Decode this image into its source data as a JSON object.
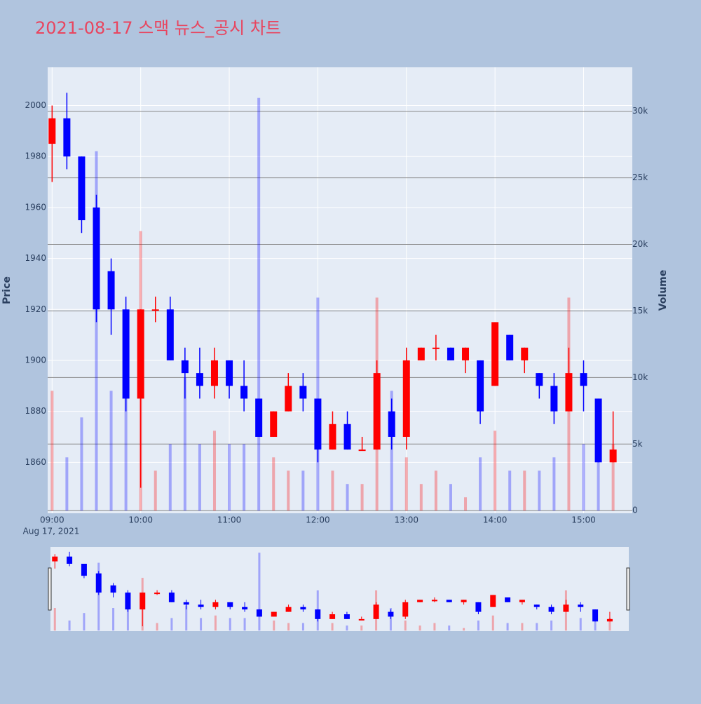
{
  "chart_data": {
    "type": "candlestick",
    "title": "2021-08-17 스맥 뉴스_공시 차트",
    "y_label": "Price",
    "y2_label": "Volume",
    "x_date_label": "Aug 17, 2021",
    "up_color": "#ff0000",
    "down_color": "#0000ff",
    "x": [
      "09:00",
      "09:10",
      "09:20",
      "09:30",
      "09:40",
      "09:50",
      "10:00",
      "10:10",
      "10:20",
      "10:30",
      "10:40",
      "10:50",
      "11:00",
      "11:10",
      "11:20",
      "11:30",
      "11:40",
      "11:50",
      "12:00",
      "12:10",
      "12:20",
      "12:30",
      "12:40",
      "12:50",
      "13:00",
      "13:10",
      "13:20",
      "13:30",
      "13:40",
      "13:50",
      "14:00",
      "14:10",
      "14:20",
      "14:30",
      "14:40",
      "14:50",
      "15:00",
      "15:10",
      "15:20"
    ],
    "open": [
      1985,
      1995,
      1980,
      1960,
      1935,
      1920,
      1885,
      1920,
      1920,
      1900,
      1895,
      1890,
      1900,
      1890,
      1885,
      1870,
      1880,
      1890,
      1885,
      1865,
      1875,
      1865,
      1865,
      1880,
      1870,
      1900,
      1905,
      1905,
      1900,
      1900,
      1890,
      1910,
      1900,
      1895,
      1890,
      1880,
      1895,
      1885,
      1860
    ],
    "high": [
      2000,
      2005,
      1980,
      1965,
      1940,
      1925,
      1920,
      1925,
      1925,
      1905,
      1905,
      1905,
      1900,
      1900,
      1885,
      1880,
      1895,
      1895,
      1885,
      1880,
      1880,
      1870,
      1900,
      1885,
      1905,
      1905,
      1910,
      1905,
      1905,
      1900,
      1915,
      1910,
      1905,
      1895,
      1895,
      1905,
      1900,
      1885,
      1880
    ],
    "low": [
      1970,
      1975,
      1950,
      1915,
      1910,
      1880,
      1850,
      1915,
      1900,
      1885,
      1885,
      1885,
      1885,
      1880,
      1870,
      1870,
      1880,
      1880,
      1860,
      1865,
      1865,
      1865,
      1865,
      1865,
      1865,
      1900,
      1900,
      1900,
      1895,
      1875,
      1890,
      1900,
      1895,
      1885,
      1875,
      1880,
      1880,
      1860,
      1860
    ],
    "close": [
      1995,
      1980,
      1955,
      1920,
      1920,
      1885,
      1920,
      1920,
      1900,
      1895,
      1890,
      1900,
      1890,
      1885,
      1870,
      1880,
      1890,
      1885,
      1865,
      1875,
      1865,
      1865,
      1895,
      1870,
      1900,
      1905,
      1905,
      1900,
      1905,
      1880,
      1915,
      1900,
      1905,
      1890,
      1880,
      1895,
      1890,
      1860,
      1865
    ],
    "volume": [
      9000,
      4000,
      7000,
      27000,
      9000,
      10000,
      21000,
      3000,
      5000,
      10000,
      5000,
      6000,
      5000,
      5000,
      31000,
      4000,
      3000,
      3000,
      16000,
      3000,
      2000,
      2000,
      16000,
      9000,
      4000,
      2000,
      3000,
      2000,
      1000,
      4000,
      6000,
      3000,
      3000,
      3000,
      4000,
      16000,
      5000,
      8000,
      5000
    ],
    "xlim": [
      "08:57",
      "15:33"
    ],
    "xticks": [
      "09:00",
      "10:00",
      "11:00",
      "12:00",
      "13:00",
      "14:00",
      "15:00"
    ],
    "ylim": [
      1840,
      2015
    ],
    "yticks": [
      1860,
      1880,
      1900,
      1920,
      1940,
      1960,
      1980,
      2000
    ],
    "y2lim": [
      -200,
      33300
    ],
    "y2ticks": [
      0,
      {
        "value": 5000,
        "label": "5k"
      },
      {
        "value": 10000,
        "label": "10k"
      },
      {
        "value": 15000,
        "label": "15k"
      },
      {
        "value": 20000,
        "label": "20k"
      },
      {
        "value": 25000,
        "label": "25k"
      },
      {
        "value": 30000,
        "label": "30k"
      }
    ],
    "grid": true,
    "rangeslider": true
  }
}
